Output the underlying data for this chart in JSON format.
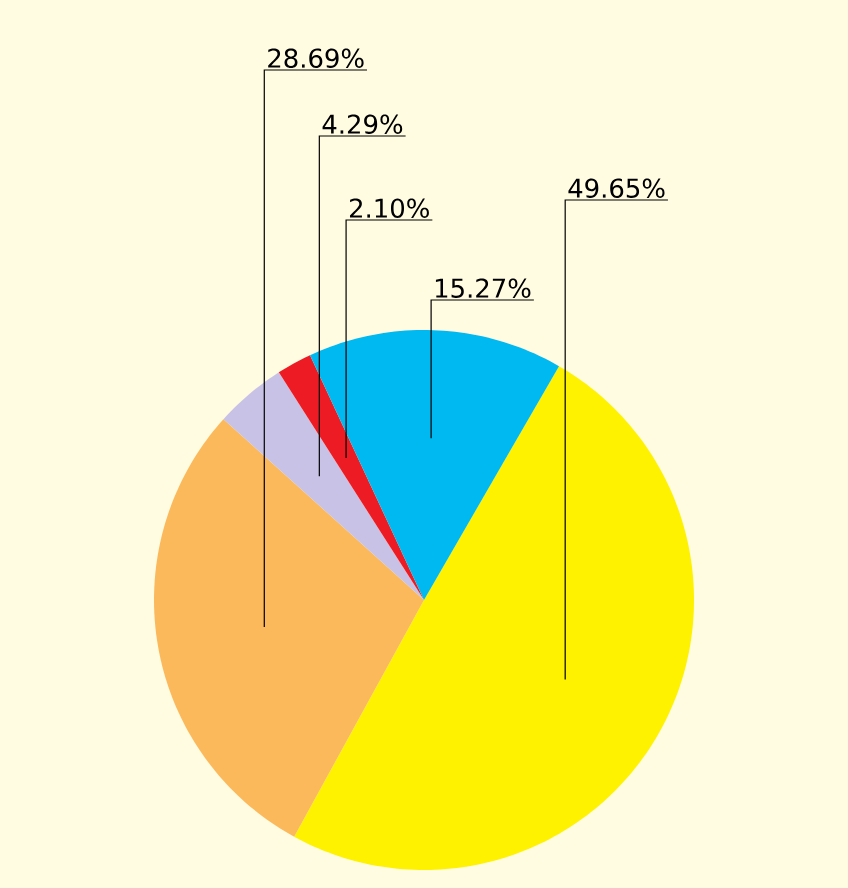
{
  "chart_data": {
    "type": "pie",
    "categories": [
      null,
      null,
      null,
      null,
      null
    ],
    "values": [
      49.65,
      28.69,
      4.29,
      2.1,
      15.27
    ],
    "colors": [
      "#fff200",
      "#fbb95c",
      "#c8c3e6",
      "#ed1c24",
      "#00b9f0"
    ],
    "value_labels": [
      "49.65%",
      "28.69%",
      "4.29%",
      "2.10%",
      "15.27%"
    ]
  }
}
